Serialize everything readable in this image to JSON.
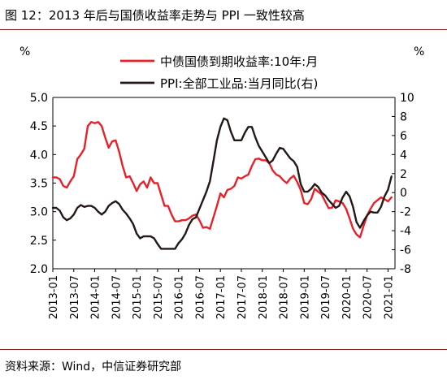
{
  "title": "图 12：2013 年后与国债收益率走势与 PPI 一致性较高",
  "source": "资料来源：Wind，中信证券研究部",
  "chart_data": {
    "type": "line",
    "title": "2013 年后与国债收益率走势与 PPI 一致性较高",
    "x_ticks": [
      "2013-01",
      "2013-07",
      "2014-01",
      "2014-07",
      "2015-01",
      "2015-07",
      "2016-01",
      "2016-07",
      "2017-01",
      "2017-07",
      "2018-01",
      "2018-07",
      "2019-01",
      "2019-07",
      "2020-01",
      "2020-07",
      "2021-01"
    ],
    "x_range": [
      "2013-01",
      "2021-03"
    ],
    "y_left": {
      "unit": "%",
      "range": [
        2.0,
        5.0
      ],
      "ticks": [
        "2.0",
        "2.5",
        "3.0",
        "3.5",
        "4.0",
        "4.5",
        "5.0"
      ]
    },
    "y_right": {
      "unit": "%",
      "range": [
        -8,
        10
      ],
      "ticks": [
        "-8",
        "-6",
        "-4",
        "-2",
        "0",
        "2",
        "4",
        "6",
        "8",
        "10"
      ]
    },
    "legend_position": "top",
    "grid": false,
    "colors": {
      "yield": "#e8202a",
      "ppi": "#231815",
      "frame": "#000000",
      "rule": "#7f1d1d"
    },
    "series": [
      {
        "name": "中债国债到期收益率:10年:月",
        "axis": "left",
        "x": [
          "2013-01",
          "2013-02",
          "2013-03",
          "2013-04",
          "2013-05",
          "2013-06",
          "2013-07",
          "2013-08",
          "2013-09",
          "2013-10",
          "2013-11",
          "2013-12",
          "2014-01",
          "2014-02",
          "2014-03",
          "2014-04",
          "2014-05",
          "2014-06",
          "2014-07",
          "2014-08",
          "2014-09",
          "2014-10",
          "2014-11",
          "2014-12",
          "2015-01",
          "2015-02",
          "2015-03",
          "2015-04",
          "2015-05",
          "2015-06",
          "2015-07",
          "2015-08",
          "2015-09",
          "2015-10",
          "2015-11",
          "2015-12",
          "2016-01",
          "2016-02",
          "2016-03",
          "2016-04",
          "2016-05",
          "2016-06",
          "2016-07",
          "2016-08",
          "2016-09",
          "2016-10",
          "2016-11",
          "2016-12",
          "2017-01",
          "2017-02",
          "2017-03",
          "2017-04",
          "2017-05",
          "2017-06",
          "2017-07",
          "2017-08",
          "2017-09",
          "2017-10",
          "2017-11",
          "2017-12",
          "2018-01",
          "2018-02",
          "2018-03",
          "2018-04",
          "2018-05",
          "2018-06",
          "2018-07",
          "2018-08",
          "2018-09",
          "2018-10",
          "2018-11",
          "2018-12",
          "2019-01",
          "2019-02",
          "2019-03",
          "2019-04",
          "2019-05",
          "2019-06",
          "2019-07",
          "2019-08",
          "2019-09",
          "2019-10",
          "2019-11",
          "2019-12",
          "2020-01",
          "2020-02",
          "2020-03",
          "2020-04",
          "2020-05",
          "2020-06",
          "2020-07",
          "2020-08",
          "2020-09",
          "2020-10",
          "2020-11",
          "2020-12",
          "2021-01",
          "2021-02"
        ],
        "values": [
          3.6,
          3.6,
          3.57,
          3.45,
          3.42,
          3.53,
          3.62,
          3.92,
          4.0,
          4.1,
          4.5,
          4.57,
          4.55,
          4.57,
          4.5,
          4.3,
          4.12,
          4.23,
          4.25,
          4.05,
          3.8,
          3.6,
          3.62,
          3.5,
          3.36,
          3.48,
          3.53,
          3.42,
          3.6,
          3.5,
          3.5,
          3.3,
          3.1,
          3.1,
          2.95,
          2.83,
          2.83,
          2.85,
          2.85,
          2.88,
          2.93,
          2.95,
          2.85,
          2.72,
          2.73,
          2.7,
          2.9,
          3.1,
          3.32,
          3.25,
          3.38,
          3.4,
          3.45,
          3.6,
          3.58,
          3.62,
          3.65,
          3.8,
          3.92,
          3.93,
          3.9,
          3.9,
          3.85,
          3.72,
          3.65,
          3.62,
          3.55,
          3.5,
          3.58,
          3.63,
          3.52,
          3.38,
          3.15,
          3.13,
          3.22,
          3.4,
          3.35,
          3.3,
          3.18,
          3.06,
          3.07,
          3.2,
          3.18,
          3.15,
          3.05,
          2.88,
          2.7,
          2.6,
          2.55,
          2.75,
          2.93,
          3.05,
          3.15,
          3.2,
          3.25,
          3.22,
          3.18,
          3.25
        ]
      },
      {
        "name": "PPI:全部工业品:当月同比(右)",
        "axis": "right",
        "x": [
          "2013-01",
          "2013-02",
          "2013-03",
          "2013-04",
          "2013-05",
          "2013-06",
          "2013-07",
          "2013-08",
          "2013-09",
          "2013-10",
          "2013-11",
          "2013-12",
          "2014-01",
          "2014-02",
          "2014-03",
          "2014-04",
          "2014-05",
          "2014-06",
          "2014-07",
          "2014-08",
          "2014-09",
          "2014-10",
          "2014-11",
          "2014-12",
          "2015-01",
          "2015-02",
          "2015-03",
          "2015-04",
          "2015-05",
          "2015-06",
          "2015-07",
          "2015-08",
          "2015-09",
          "2015-10",
          "2015-11",
          "2015-12",
          "2016-01",
          "2016-02",
          "2016-03",
          "2016-04",
          "2016-05",
          "2016-06",
          "2016-07",
          "2016-08",
          "2016-09",
          "2016-10",
          "2016-11",
          "2016-12",
          "2017-01",
          "2017-02",
          "2017-03",
          "2017-04",
          "2017-05",
          "2017-06",
          "2017-07",
          "2017-08",
          "2017-09",
          "2017-10",
          "2017-11",
          "2017-12",
          "2018-01",
          "2018-02",
          "2018-03",
          "2018-04",
          "2018-05",
          "2018-06",
          "2018-07",
          "2018-08",
          "2018-09",
          "2018-10",
          "2018-11",
          "2018-12",
          "2019-01",
          "2019-02",
          "2019-03",
          "2019-04",
          "2019-05",
          "2019-06",
          "2019-07",
          "2019-08",
          "2019-09",
          "2019-10",
          "2019-11",
          "2019-12",
          "2020-01",
          "2020-02",
          "2020-03",
          "2020-04",
          "2020-05",
          "2020-06",
          "2020-07",
          "2020-08",
          "2020-09",
          "2020-10",
          "2020-11",
          "2020-12",
          "2021-01",
          "2021-02"
        ],
        "values": [
          -1.6,
          -1.6,
          -1.9,
          -2.6,
          -2.9,
          -2.7,
          -2.3,
          -1.6,
          -1.3,
          -1.5,
          -1.4,
          -1.4,
          -1.6,
          -2.0,
          -2.3,
          -2.0,
          -1.4,
          -1.1,
          -0.9,
          -1.2,
          -1.8,
          -2.2,
          -2.7,
          -3.3,
          -4.3,
          -4.8,
          -4.6,
          -4.6,
          -4.6,
          -4.8,
          -5.4,
          -5.9,
          -5.9,
          -5.9,
          -5.9,
          -5.9,
          -5.3,
          -4.9,
          -4.3,
          -3.4,
          -2.8,
          -2.6,
          -1.7,
          -0.8,
          0.1,
          1.2,
          3.3,
          5.5,
          6.9,
          7.8,
          7.6,
          6.4,
          5.5,
          5.5,
          5.5,
          6.3,
          6.9,
          6.9,
          5.8,
          4.9,
          4.3,
          3.7,
          3.1,
          3.4,
          4.1,
          4.7,
          4.6,
          4.1,
          3.6,
          3.3,
          2.7,
          0.9,
          0.1,
          0.1,
          0.4,
          0.9,
          0.6,
          0.0,
          -0.3,
          -0.8,
          -1.2,
          -1.6,
          -1.4,
          -0.5,
          0.1,
          -0.4,
          -1.5,
          -3.1,
          -3.7,
          -3.0,
          -2.4,
          -2.0,
          -2.1,
          -2.1,
          -1.5,
          -0.4,
          0.3,
          1.7
        ]
      }
    ]
  }
}
